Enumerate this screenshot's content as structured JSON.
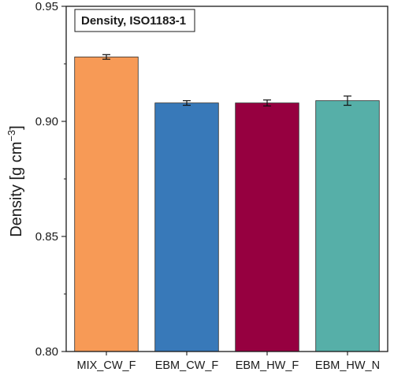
{
  "chart_data": {
    "type": "bar",
    "title": "Density, ISO1183-1",
    "ylabel": "Density [g cm",
    "ylabel_sup": "−3",
    "ylabel_close": "]",
    "xlabel": "",
    "ylim": [
      0.8,
      0.95
    ],
    "yticks": [
      0.8,
      0.85,
      0.9,
      0.95
    ],
    "ytick_labels": [
      "0.80",
      "0.85",
      "0.90",
      "0.95"
    ],
    "categories": [
      "MIX_CW_F",
      "EBM_CW_F",
      "EBM_HW_F",
      "EBM_HW_N"
    ],
    "values": [
      0.928,
      0.908,
      0.908,
      0.909
    ],
    "errors": [
      0.001,
      0.001,
      0.0013,
      0.002
    ],
    "colors": [
      "#F79A56",
      "#3879B9",
      "#960040",
      "#56AFA8"
    ],
    "grid": false,
    "legend": "none"
  }
}
